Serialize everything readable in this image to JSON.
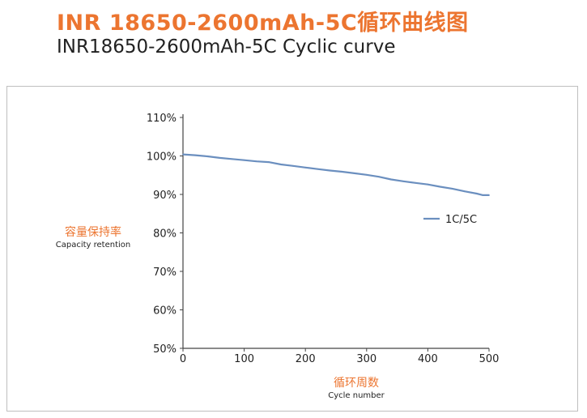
{
  "header": {
    "title_cn": "INR 18650-2600mAh-5C循环曲线图",
    "title_en": "INR18650-2600mAh-5C Cyclic curve"
  },
  "chart_data": {
    "type": "line",
    "title": "INR 18650-2600mAh-5C循环曲线图",
    "subtitle": "INR18650-2600mAh-5C Cyclic curve",
    "ylabel_cn": "容量保持率",
    "ylabel_en": "Capacity retention",
    "xlabel_cn": "循环周数",
    "xlabel_en": "Cycle number",
    "xlim": [
      0,
      500
    ],
    "ylim": [
      50,
      110
    ],
    "x_ticks": [
      0,
      100,
      200,
      300,
      400,
      500
    ],
    "y_ticks": [
      50,
      60,
      70,
      80,
      90,
      100,
      110
    ],
    "y_tick_labels": [
      "50%",
      "60%",
      "70%",
      "80%",
      "90%",
      "100%",
      "110%"
    ],
    "grid": false,
    "legend_position": "right",
    "series": [
      {
        "name": "1C/5C",
        "color": "#6b8fbf",
        "x": [
          0,
          10,
          20,
          40,
          60,
          80,
          100,
          120,
          140,
          160,
          180,
          200,
          220,
          240,
          260,
          280,
          300,
          320,
          340,
          360,
          380,
          400,
          420,
          440,
          460,
          480,
          490,
          500
        ],
        "y": [
          100.4,
          100.3,
          100.2,
          99.9,
          99.5,
          99.2,
          98.9,
          98.6,
          98.4,
          97.8,
          97.4,
          97.0,
          96.6,
          96.2,
          95.9,
          95.5,
          95.1,
          94.6,
          93.9,
          93.4,
          93.0,
          92.6,
          92.0,
          91.5,
          90.8,
          90.2,
          89.8,
          89.8
        ]
      }
    ]
  }
}
